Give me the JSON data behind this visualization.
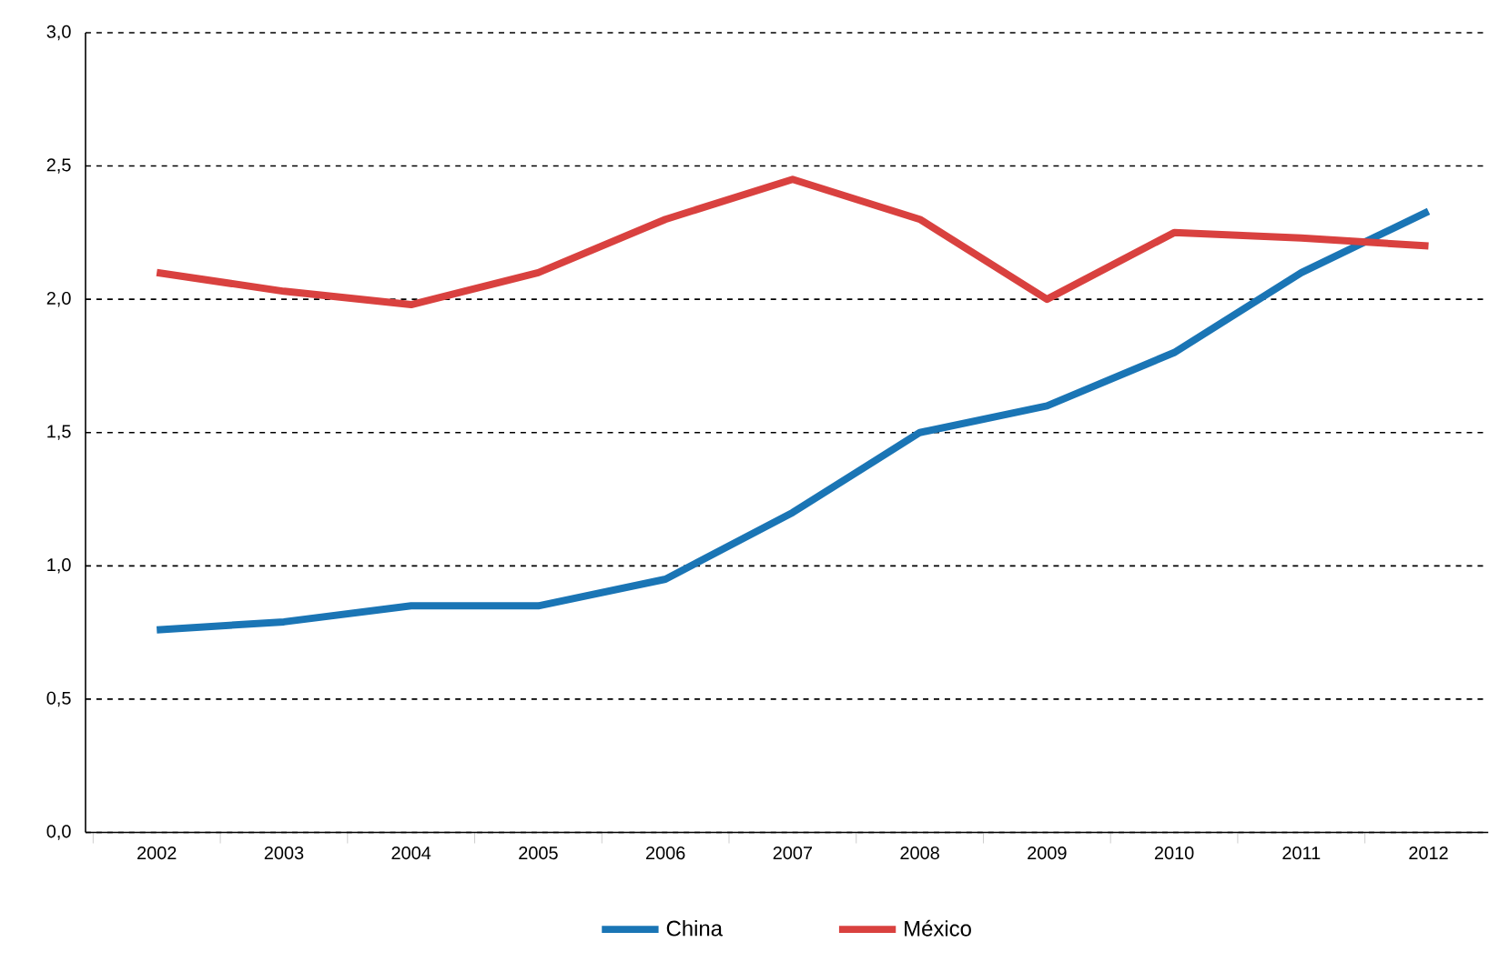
{
  "chart_data": {
    "type": "line",
    "categories": [
      "2002",
      "2003",
      "2004",
      "2005",
      "2006",
      "2007",
      "2008",
      "2009",
      "2010",
      "2011",
      "2012"
    ],
    "series": [
      {
        "name": "China",
        "color": "#1a75b5",
        "values": [
          0.76,
          0.79,
          0.85,
          0.85,
          0.95,
          1.2,
          1.5,
          1.6,
          1.8,
          2.1,
          2.33
        ]
      },
      {
        "name": "México",
        "color": "#d9413f",
        "values": [
          2.1,
          2.03,
          1.98,
          2.1,
          2.3,
          2.45,
          2.3,
          2.0,
          2.25,
          2.23,
          2.2
        ]
      }
    ],
    "ylim": [
      0,
      3
    ],
    "yticks": [
      {
        "value": 0,
        "label": "0,0"
      },
      {
        "value": 0.5,
        "label": "0,5"
      },
      {
        "value": 1,
        "label": "1,0"
      },
      {
        "value": 1.5,
        "label": "1,5"
      },
      {
        "value": 2,
        "label": "2,0"
      },
      {
        "value": 2.5,
        "label": "2,5"
      },
      {
        "value": 3,
        "label": "3,0"
      }
    ],
    "grid": "y",
    "legend": "bottom",
    "line_style": "solid",
    "marker": "none"
  }
}
